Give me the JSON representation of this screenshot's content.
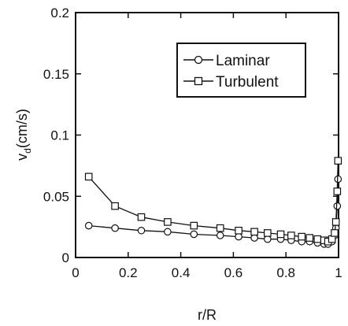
{
  "chart_data": {
    "type": "line",
    "xlabel": "r/R",
    "ylabel": "v",
    "ylabel_sub": "d",
    "ylabel_unit": "(cm/s)",
    "xlim": [
      0,
      1
    ],
    "ylim": [
      0,
      0.2
    ],
    "x_ticks": [
      0,
      0.2,
      0.4,
      0.6,
      0.8,
      1
    ],
    "x_tick_labels": [
      "0",
      "0.2",
      "0.4",
      "0.6",
      "0.8",
      "1"
    ],
    "y_ticks": [
      0,
      0.05,
      0.1,
      0.15,
      0.2
    ],
    "y_tick_labels": [
      "0",
      "0.05",
      "0.1",
      "0.15",
      "0.2"
    ],
    "grid": false,
    "legend_position": "top-right",
    "series": [
      {
        "name": "Laminar",
        "marker": "circle",
        "x": [
          0.05,
          0.15,
          0.25,
          0.35,
          0.45,
          0.55,
          0.62,
          0.68,
          0.73,
          0.78,
          0.82,
          0.86,
          0.89,
          0.92,
          0.945,
          0.96,
          0.975,
          0.985,
          0.99,
          0.995,
          0.998
        ],
        "y": [
          0.026,
          0.024,
          0.022,
          0.021,
          0.019,
          0.018,
          0.017,
          0.016,
          0.015,
          0.015,
          0.014,
          0.013,
          0.013,
          0.012,
          0.011,
          0.011,
          0.013,
          0.018,
          0.024,
          0.042,
          0.064
        ]
      },
      {
        "name": "Turbulent",
        "marker": "square",
        "x": [
          0.05,
          0.15,
          0.25,
          0.35,
          0.45,
          0.55,
          0.62,
          0.68,
          0.73,
          0.78,
          0.82,
          0.86,
          0.89,
          0.92,
          0.945,
          0.96,
          0.975,
          0.985,
          0.99,
          0.995,
          0.998
        ],
        "y": [
          0.066,
          0.042,
          0.033,
          0.029,
          0.026,
          0.024,
          0.022,
          0.021,
          0.02,
          0.019,
          0.018,
          0.017,
          0.016,
          0.015,
          0.014,
          0.013,
          0.015,
          0.02,
          0.029,
          0.054,
          0.079
        ]
      }
    ]
  }
}
